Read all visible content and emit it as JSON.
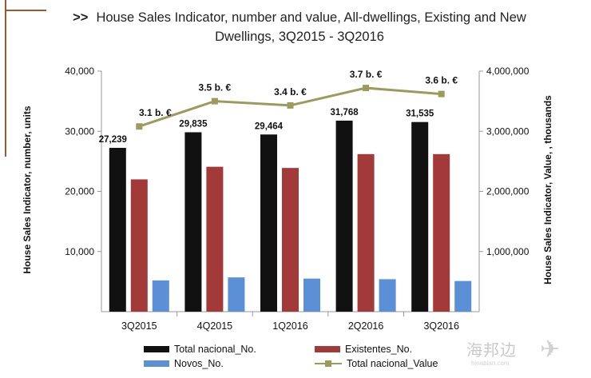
{
  "page": {
    "title_prefix": ">>",
    "title_line1": "House Sales Indicator, number and value, All-dwellings, Existing and New",
    "title_line2": "Dwellings, 3Q2015 - 3Q2016"
  },
  "chart_data": {
    "type": "bar",
    "title": "House Sales Indicator, number and value, All-dwellings, Existing and New Dwellings, 3Q2015 - 3Q2016",
    "categories": [
      "3Q2015",
      "4Q2015",
      "1Q2016",
      "2Q2016",
      "3Q2016"
    ],
    "ylabel": "House Sales Indicator, number, units",
    "y2label": "House Sales Indicator, Value, , thousands",
    "ylim": [
      0,
      40000
    ],
    "y2lim": [
      0,
      4000000
    ],
    "yticks": [
      "10,000",
      "20,000",
      "30,000",
      "40,000"
    ],
    "y2ticks": [
      "1,000,000",
      "2,000,000",
      "3,000,000",
      "4,000,000"
    ],
    "series": [
      {
        "name": "Total nacional_No.",
        "kind": "bar",
        "axis": "left",
        "color": "#111111",
        "values": [
          27239,
          29835,
          29464,
          31768,
          31535
        ],
        "labels": [
          "27,239",
          "29,835",
          "29,464",
          "31,768",
          "31,535"
        ]
      },
      {
        "name": "Existentes_No.",
        "kind": "bar",
        "axis": "left",
        "color": "#a33a3a",
        "values": [
          22000,
          24100,
          23900,
          26200,
          26200
        ]
      },
      {
        "name": "Novos_No.",
        "kind": "bar",
        "axis": "left",
        "color": "#5b8fd6",
        "values": [
          5200,
          5700,
          5500,
          5400,
          5100
        ]
      },
      {
        "name": "Total nacional_Value",
        "kind": "line",
        "axis": "right",
        "color": "#9d9a5e",
        "values": [
          3080000,
          3500000,
          3430000,
          3720000,
          3620000
        ],
        "labels": [
          "3.1 b. €",
          "3.5 b. €",
          "3.4 b. €",
          "3.7 b. €",
          "3.6 b. €"
        ]
      }
    ],
    "legend_position": "bottom"
  },
  "watermark": {
    "text": "海邦边",
    "sub": "hinabian.com"
  }
}
